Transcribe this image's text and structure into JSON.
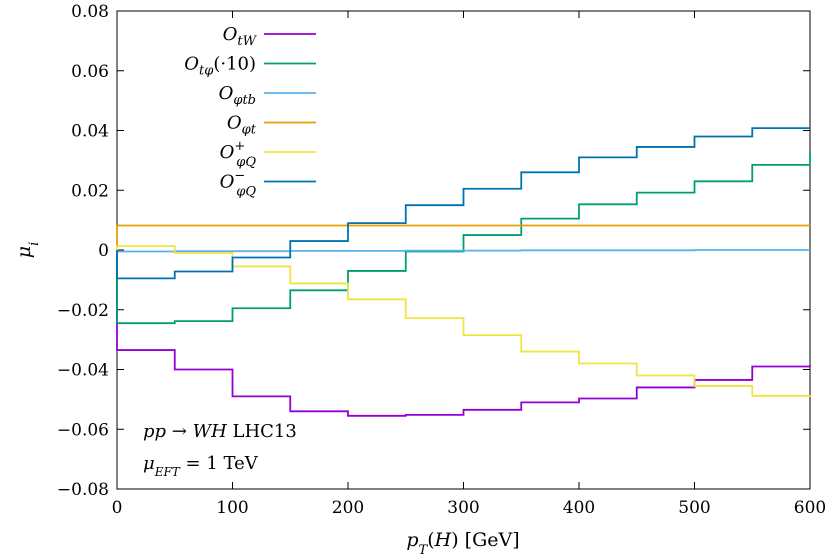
{
  "chart_data": {
    "type": "line",
    "style": "histogram-step",
    "xlabel": "p_T(H) [GeV]",
    "ylabel": "μ_i",
    "xlim": [
      0,
      600
    ],
    "ylim": [
      -0.08,
      0.08
    ],
    "xticks": [
      0,
      100,
      200,
      300,
      400,
      500,
      600
    ],
    "xtick_labels": [
      "0",
      "100",
      "200",
      "300",
      "400",
      "500",
      "600"
    ],
    "yticks": [
      -0.08,
      -0.06,
      -0.04,
      -0.02,
      0,
      0.02,
      0.04,
      0.06,
      0.08
    ],
    "ytick_labels": [
      "−0.08",
      "−0.06",
      "−0.04",
      "−0.02",
      "0",
      "0.02",
      "0.04",
      "0.06",
      "0.08"
    ],
    "grid": false,
    "legend_position": "top-left",
    "bin_edges": [
      0,
      50,
      100,
      150,
      200,
      250,
      300,
      350,
      400,
      450,
      500,
      550,
      600
    ],
    "series": [
      {
        "name": "O_tW",
        "color": "#9400d3",
        "values": [
          -0.0335,
          -0.04,
          -0.049,
          -0.054,
          -0.0555,
          -0.0552,
          -0.0535,
          -0.051,
          -0.0497,
          -0.046,
          -0.0435,
          -0.039
        ]
      },
      {
        "name": "O_tφ(·10)",
        "color": "#009e73",
        "values": [
          -0.0245,
          -0.0238,
          -0.0195,
          -0.0135,
          -0.007,
          -0.0005,
          0.005,
          0.0105,
          0.0153,
          0.0192,
          0.023,
          0.0285
        ]
      },
      {
        "name": "O_φtb",
        "color": "#56b4e9",
        "values": [
          -0.0005,
          -0.0004,
          -0.0004,
          -0.0003,
          -0.0003,
          -0.0002,
          -0.0002,
          -0.0001,
          -0.0001,
          -0.0001,
          0.0,
          0.0
        ]
      },
      {
        "name": "O_φt",
        "color": "#e69f00",
        "values": [
          0.0082,
          0.0082,
          0.0082,
          0.0082,
          0.0082,
          0.0082,
          0.0082,
          0.0082,
          0.0082,
          0.0082,
          0.0082,
          0.0082
        ]
      },
      {
        "name": "O_φQ^+",
        "color": "#f0e442",
        "values": [
          0.0013,
          -0.001,
          -0.0055,
          -0.0112,
          -0.0165,
          -0.0228,
          -0.0285,
          -0.034,
          -0.038,
          -0.042,
          -0.0455,
          -0.0488
        ]
      },
      {
        "name": "O_φQ^−",
        "color": "#0072b2",
        "values": [
          -0.0095,
          -0.0072,
          -0.0025,
          0.003,
          0.009,
          0.015,
          0.0205,
          0.026,
          0.031,
          0.0345,
          0.038,
          0.0408
        ]
      }
    ],
    "annotations": [
      "pp → WH LHC13",
      "μ_EFT = 1 TeV"
    ],
    "end_values": [
      0.033,
      -0.0385,
      -0.0492
    ]
  }
}
